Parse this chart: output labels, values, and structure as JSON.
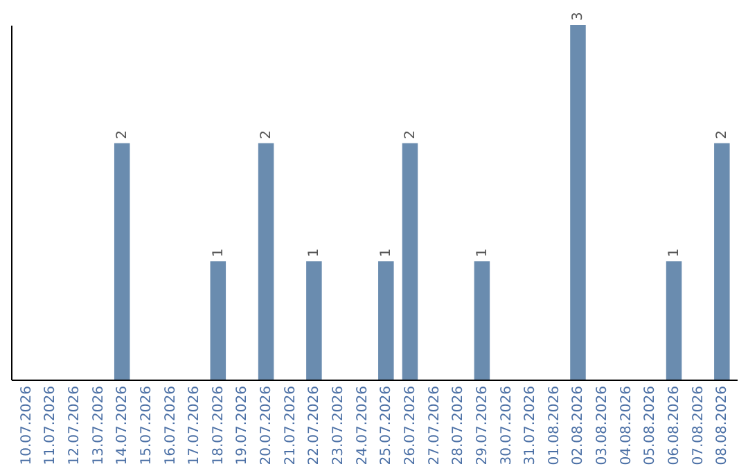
{
  "chart_data": {
    "type": "bar",
    "categories": [
      "10.07.2026",
      "11.07.2026",
      "12.07.2026",
      "13.07.2026",
      "14.07.2026",
      "15.07.2026",
      "16.07.2026",
      "17.07.2026",
      "18.07.2026",
      "19.07.2026",
      "20.07.2026",
      "21.07.2026",
      "22.07.2026",
      "23.07.2026",
      "24.07.2026",
      "25.07.2026",
      "26.07.2026",
      "27.07.2026",
      "28.07.2026",
      "29.07.2026",
      "30.07.2026",
      "31.07.2026",
      "01.08.2026",
      "02.08.2026",
      "03.08.2026",
      "04.08.2026",
      "05.08.2026",
      "06.08.2026",
      "07.08.2026",
      "08.08.2026"
    ],
    "values": [
      null,
      null,
      null,
      null,
      2,
      null,
      null,
      null,
      1,
      null,
      2,
      null,
      1,
      null,
      null,
      1,
      2,
      null,
      null,
      1,
      null,
      null,
      null,
      3,
      null,
      null,
      null,
      1,
      null,
      2
    ],
    "color": "#6a8caf",
    "ylim": [
      0,
      3
    ],
    "data_labels": true,
    "tick_labels": "x"
  }
}
